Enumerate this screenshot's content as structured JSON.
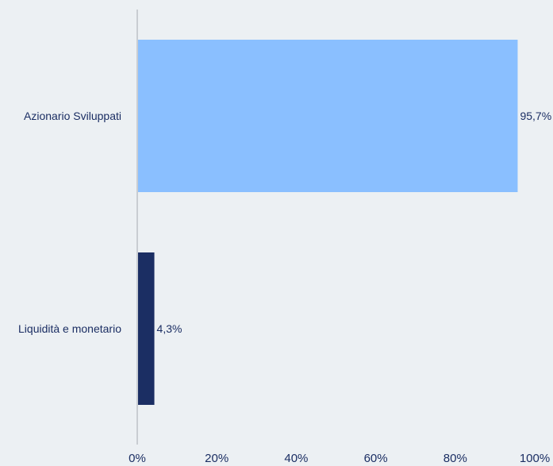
{
  "chart_data": {
    "type": "bar",
    "orientation": "horizontal",
    "categories": [
      "Azionario Sviluppati",
      "Liquidità e monetario"
    ],
    "values": [
      95.7,
      4.3
    ],
    "value_labels": [
      "95,7%",
      "4,3%"
    ],
    "colors": [
      "#8abfff",
      "#1b2e63"
    ],
    "xlim": [
      0,
      100
    ],
    "xticks": [
      0,
      20,
      40,
      60,
      80,
      100
    ],
    "xtick_labels": [
      "0%",
      "20%",
      "40%",
      "60%",
      "80%",
      "100%"
    ],
    "grid": false,
    "legend": "none",
    "title": "",
    "xlabel": "",
    "ylabel": ""
  }
}
